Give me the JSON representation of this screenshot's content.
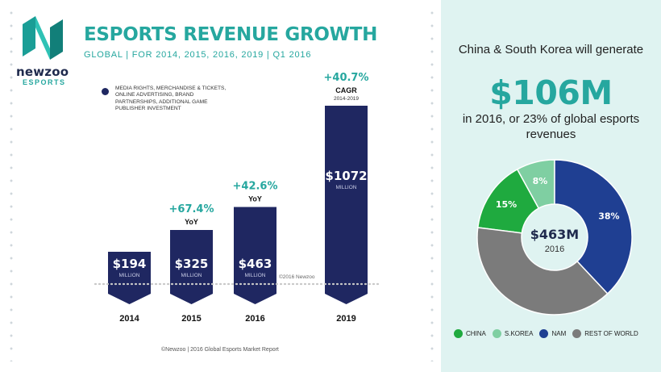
{
  "header": {
    "logo_name": "newzoo",
    "logo_sub": "ESPORTS",
    "title": "ESPORTS REVENUE GROWTH",
    "subtitle": "GLOBAL | FOR 2014, 2015, 2016, 2019 | Q1 2016",
    "legend_text": "MEDIA RIGHTS, MERCHANDISE & TICKETS, ONLINE ADVERTISING, BRAND PARTNERSHIPS, ADDITIONAL GAME PUBLISHER INVESTMENT"
  },
  "colors": {
    "bar": "#1f2761",
    "accent": "#26a79f",
    "china": "#1faa3f",
    "skorea": "#7fcfa2",
    "nam": "#1f3f92",
    "rest": "#7b7b7b",
    "panel": "#dff3f1"
  },
  "chart_data": [
    {
      "type": "bar",
      "title": "ESPORTS REVENUE GROWTH",
      "subtitle": "GLOBAL | FOR 2014, 2015, 2016, 2019 | Q1 2016",
      "categories": [
        "2014",
        "2015",
        "2016",
        "2019"
      ],
      "values": [
        194,
        325,
        463,
        1072
      ],
      "value_labels": [
        "$194",
        "$325",
        "$463",
        "$1072"
      ],
      "unit_label": "MILLION",
      "growth": [
        {
          "category": "2015",
          "value": "+67.4%",
          "label": "YoY",
          "sub": ""
        },
        {
          "category": "2016",
          "value": "+42.6%",
          "label": "YoY",
          "sub": ""
        },
        {
          "category": "2019",
          "value": "+40.7%",
          "label": "CAGR",
          "sub": "2014-2019"
        }
      ],
      "watermark": "©2016 Newzoo",
      "source": "©Newzoo | 2016 Global Esports Market Report"
    },
    {
      "type": "pie",
      "center_value": "$463M",
      "center_label": "2016",
      "slices": [
        {
          "name": "CHINA",
          "value": 15,
          "label": "15%",
          "color": "#1faa3f"
        },
        {
          "name": "S.KOREA",
          "value": 8,
          "label": "8%",
          "color": "#7fcfa2"
        },
        {
          "name": "NAM",
          "value": 38,
          "label": "38%",
          "color": "#1f3f92"
        },
        {
          "name": "REST OF WORLD",
          "value": 39,
          "label": "",
          "color": "#7b7b7b"
        }
      ]
    }
  ],
  "panel": {
    "headline": "China & South Korea will generate",
    "big_value": "$106M",
    "footline": "in 2016, or 23% of global esports revenues"
  }
}
